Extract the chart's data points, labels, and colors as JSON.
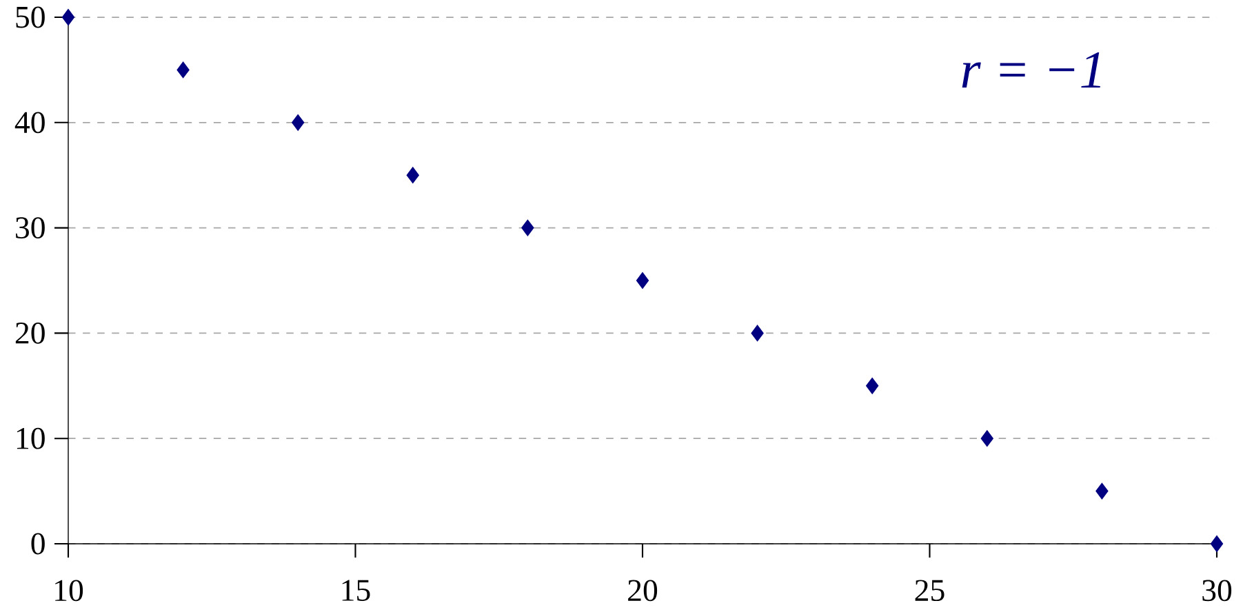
{
  "chart_data": {
    "type": "scatter",
    "x": [
      10,
      12,
      14,
      16,
      18,
      20,
      22,
      24,
      26,
      28,
      30
    ],
    "values": [
      50,
      45,
      40,
      35,
      30,
      25,
      20,
      15,
      10,
      5,
      0
    ],
    "color": "#000080",
    "marker": "diamond",
    "xlim": [
      10,
      30
    ],
    "xticks": [
      10,
      15,
      20,
      25,
      30
    ],
    "ylim": [
      0,
      50
    ],
    "yticks": [
      0,
      10,
      20,
      30,
      40,
      50
    ],
    "grid": "y",
    "annotations": [
      "r = −1"
    ]
  }
}
